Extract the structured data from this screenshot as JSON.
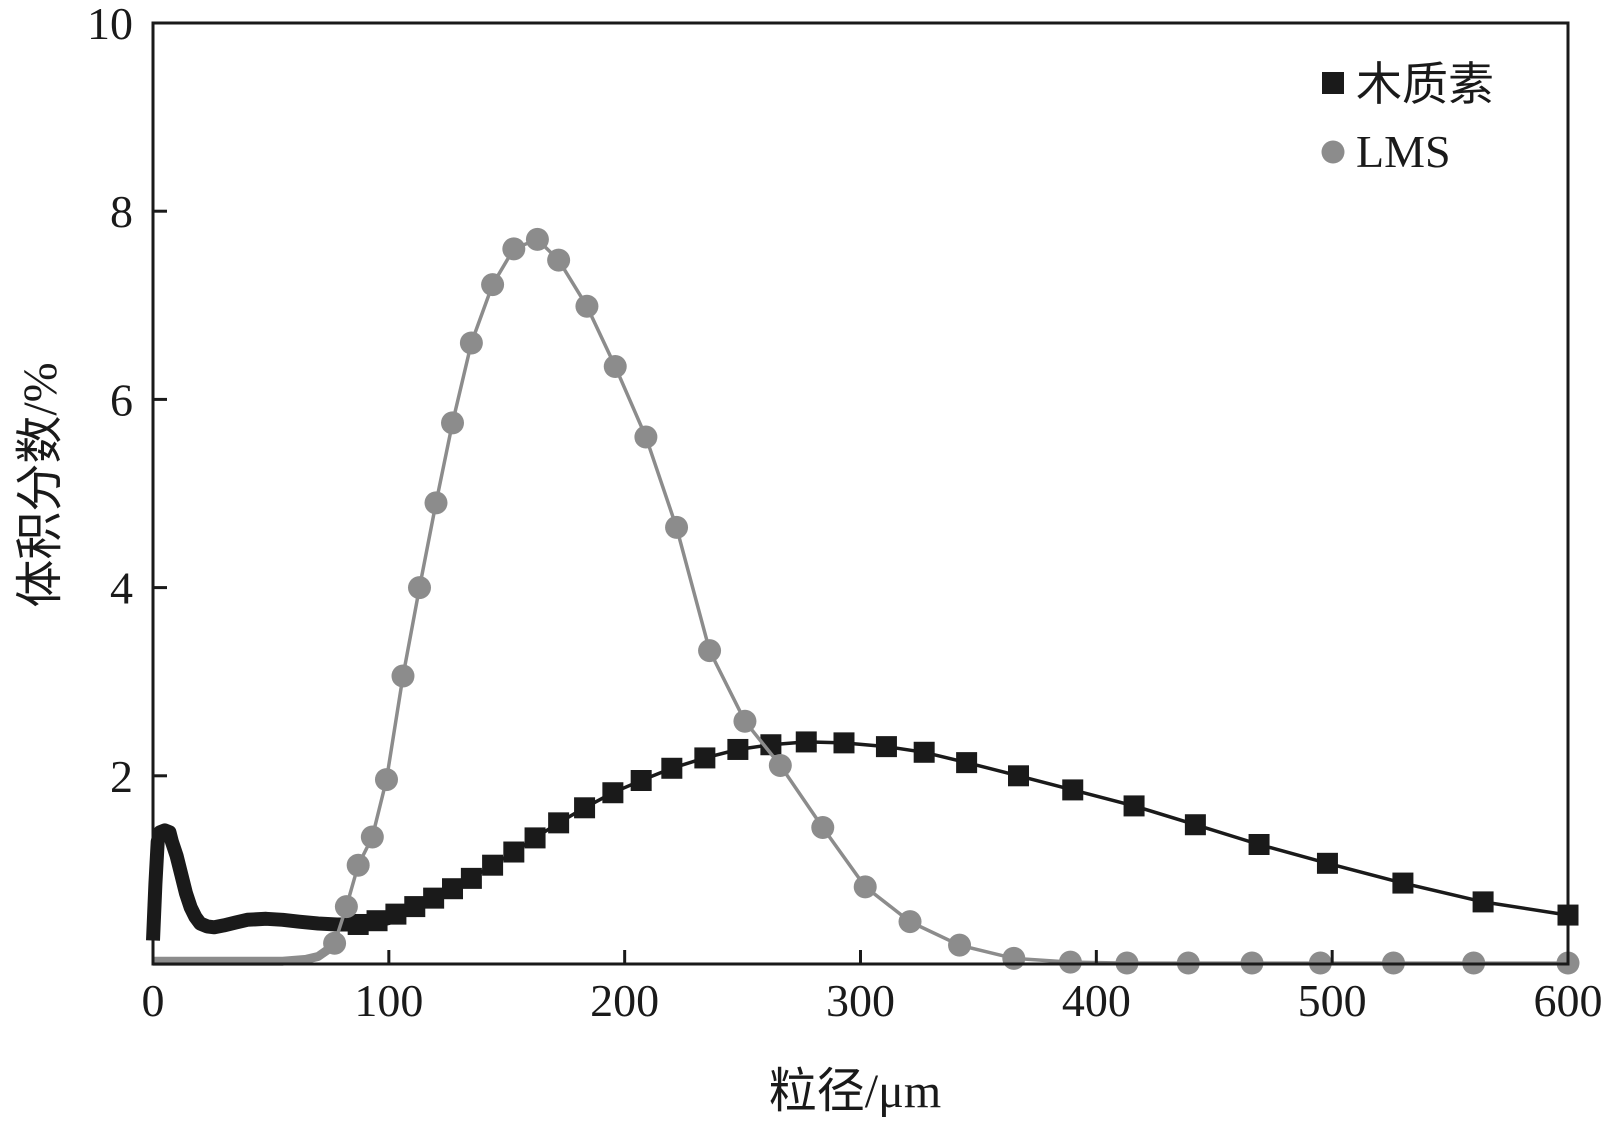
{
  "chart_data": {
    "type": "line",
    "title": "",
    "xlabel": "粒径/μm",
    "ylabel": "体积分数/%",
    "xlim": [
      0,
      600
    ],
    "ylim": [
      0,
      10
    ],
    "xticks": [
      "0",
      "100",
      "200",
      "300",
      "400",
      "500",
      "600"
    ],
    "yticks": [
      "2",
      "4",
      "6",
      "8",
      "10"
    ],
    "grid": false,
    "legend_position": "top-right",
    "series": [
      {
        "name": "木质素",
        "color": "#1a1a1a",
        "marker": "square",
        "line": [
          [
            0,
            0.25
          ],
          [
            1,
            0.85
          ],
          [
            2,
            1.3
          ],
          [
            3,
            1.4
          ],
          [
            5,
            1.42
          ],
          [
            7,
            1.4
          ],
          [
            8,
            1.3
          ],
          [
            10,
            1.15
          ],
          [
            12,
            0.95
          ],
          [
            14,
            0.75
          ],
          [
            16,
            0.6
          ],
          [
            18,
            0.5
          ],
          [
            20,
            0.43
          ],
          [
            23,
            0.4
          ],
          [
            26,
            0.39
          ],
          [
            30,
            0.41
          ],
          [
            35,
            0.44
          ],
          [
            40,
            0.47
          ],
          [
            48,
            0.48
          ],
          [
            55,
            0.47
          ],
          [
            62,
            0.45
          ],
          [
            70,
            0.43
          ],
          [
            78,
            0.42
          ],
          [
            85,
            0.42
          ],
          [
            92,
            0.44
          ],
          [
            100,
            0.49
          ]
        ],
        "points": [
          [
            87,
            0.42
          ],
          [
            95,
            0.46
          ],
          [
            103,
            0.53
          ],
          [
            111,
            0.61
          ],
          [
            119,
            0.7
          ],
          [
            127,
            0.8
          ],
          [
            135,
            0.91
          ],
          [
            144,
            1.05
          ],
          [
            153,
            1.19
          ],
          [
            162,
            1.34
          ],
          [
            172,
            1.5
          ],
          [
            183,
            1.66
          ],
          [
            195,
            1.82
          ],
          [
            207,
            1.95
          ],
          [
            220,
            2.08
          ],
          [
            234,
            2.19
          ],
          [
            248,
            2.28
          ],
          [
            262,
            2.33
          ],
          [
            277,
            2.36
          ],
          [
            293,
            2.35
          ],
          [
            311,
            2.31
          ],
          [
            327,
            2.25
          ],
          [
            345,
            2.14
          ],
          [
            367,
            2.0
          ],
          [
            390,
            1.85
          ],
          [
            416,
            1.68
          ],
          [
            442,
            1.48
          ],
          [
            469,
            1.27
          ],
          [
            498,
            1.07
          ],
          [
            530,
            0.86
          ],
          [
            564,
            0.66
          ],
          [
            600,
            0.52
          ]
        ]
      },
      {
        "name": "LMS",
        "color": "#8c8c8c",
        "marker": "circle",
        "line": [
          [
            0,
            0.03
          ],
          [
            20,
            0.03
          ],
          [
            40,
            0.03
          ],
          [
            55,
            0.03
          ],
          [
            65,
            0.05
          ],
          [
            70,
            0.08
          ],
          [
            74,
            0.15
          ]
        ],
        "points": [
          [
            77,
            0.22
          ],
          [
            82,
            0.61
          ],
          [
            87,
            1.05
          ],
          [
            93,
            1.35
          ],
          [
            99,
            1.96
          ],
          [
            106,
            3.06
          ],
          [
            113,
            4.0
          ],
          [
            120,
            4.9
          ],
          [
            127,
            5.75
          ],
          [
            135,
            6.6
          ],
          [
            144,
            7.22
          ],
          [
            153,
            7.6
          ],
          [
            163,
            7.7
          ],
          [
            172,
            7.48
          ],
          [
            184,
            6.99
          ],
          [
            196,
            6.35
          ],
          [
            209,
            5.6
          ],
          [
            222,
            4.64
          ],
          [
            236,
            3.33
          ],
          [
            251,
            2.58
          ],
          [
            266,
            2.11
          ],
          [
            284,
            1.45
          ],
          [
            302,
            0.82
          ],
          [
            321,
            0.45
          ],
          [
            342,
            0.2
          ],
          [
            365,
            0.06
          ],
          [
            389,
            0.02
          ],
          [
            413,
            0.01
          ],
          [
            439,
            0.01
          ],
          [
            466,
            0.01
          ],
          [
            495,
            0.01
          ],
          [
            526,
            0.01
          ],
          [
            560,
            0.01
          ],
          [
            600,
            0.01
          ]
        ]
      }
    ]
  }
}
